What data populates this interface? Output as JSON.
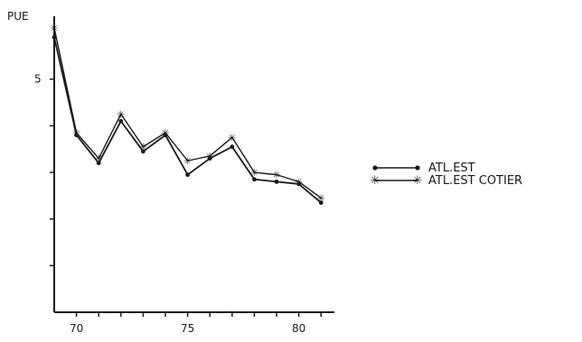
{
  "chart_data": {
    "type": "line",
    "ylabel": "PUE",
    "xlabel": "",
    "x_ticks": [
      "70",
      "75",
      "80"
    ],
    "y_ticks": [
      "5"
    ],
    "xlim": [
      69,
      81.6
    ],
    "ylim": [
      0,
      6.35
    ],
    "grid": false,
    "legend_position": "right",
    "x": [
      69,
      70,
      71,
      72,
      73,
      74,
      75,
      76,
      77,
      78,
      79,
      80,
      81
    ],
    "series": [
      {
        "name": "ATL.EST COTIER",
        "marker": "star",
        "values": [
          6.1,
          3.85,
          3.3,
          4.25,
          3.55,
          3.85,
          3.25,
          3.35,
          3.75,
          3.0,
          2.95,
          2.8,
          2.45
        ]
      },
      {
        "name": "ATL.EST",
        "marker": "dot",
        "values": [
          5.9,
          3.8,
          3.2,
          4.1,
          3.45,
          3.8,
          2.95,
          3.3,
          3.55,
          2.85,
          2.8,
          2.75,
          2.35
        ]
      }
    ]
  }
}
